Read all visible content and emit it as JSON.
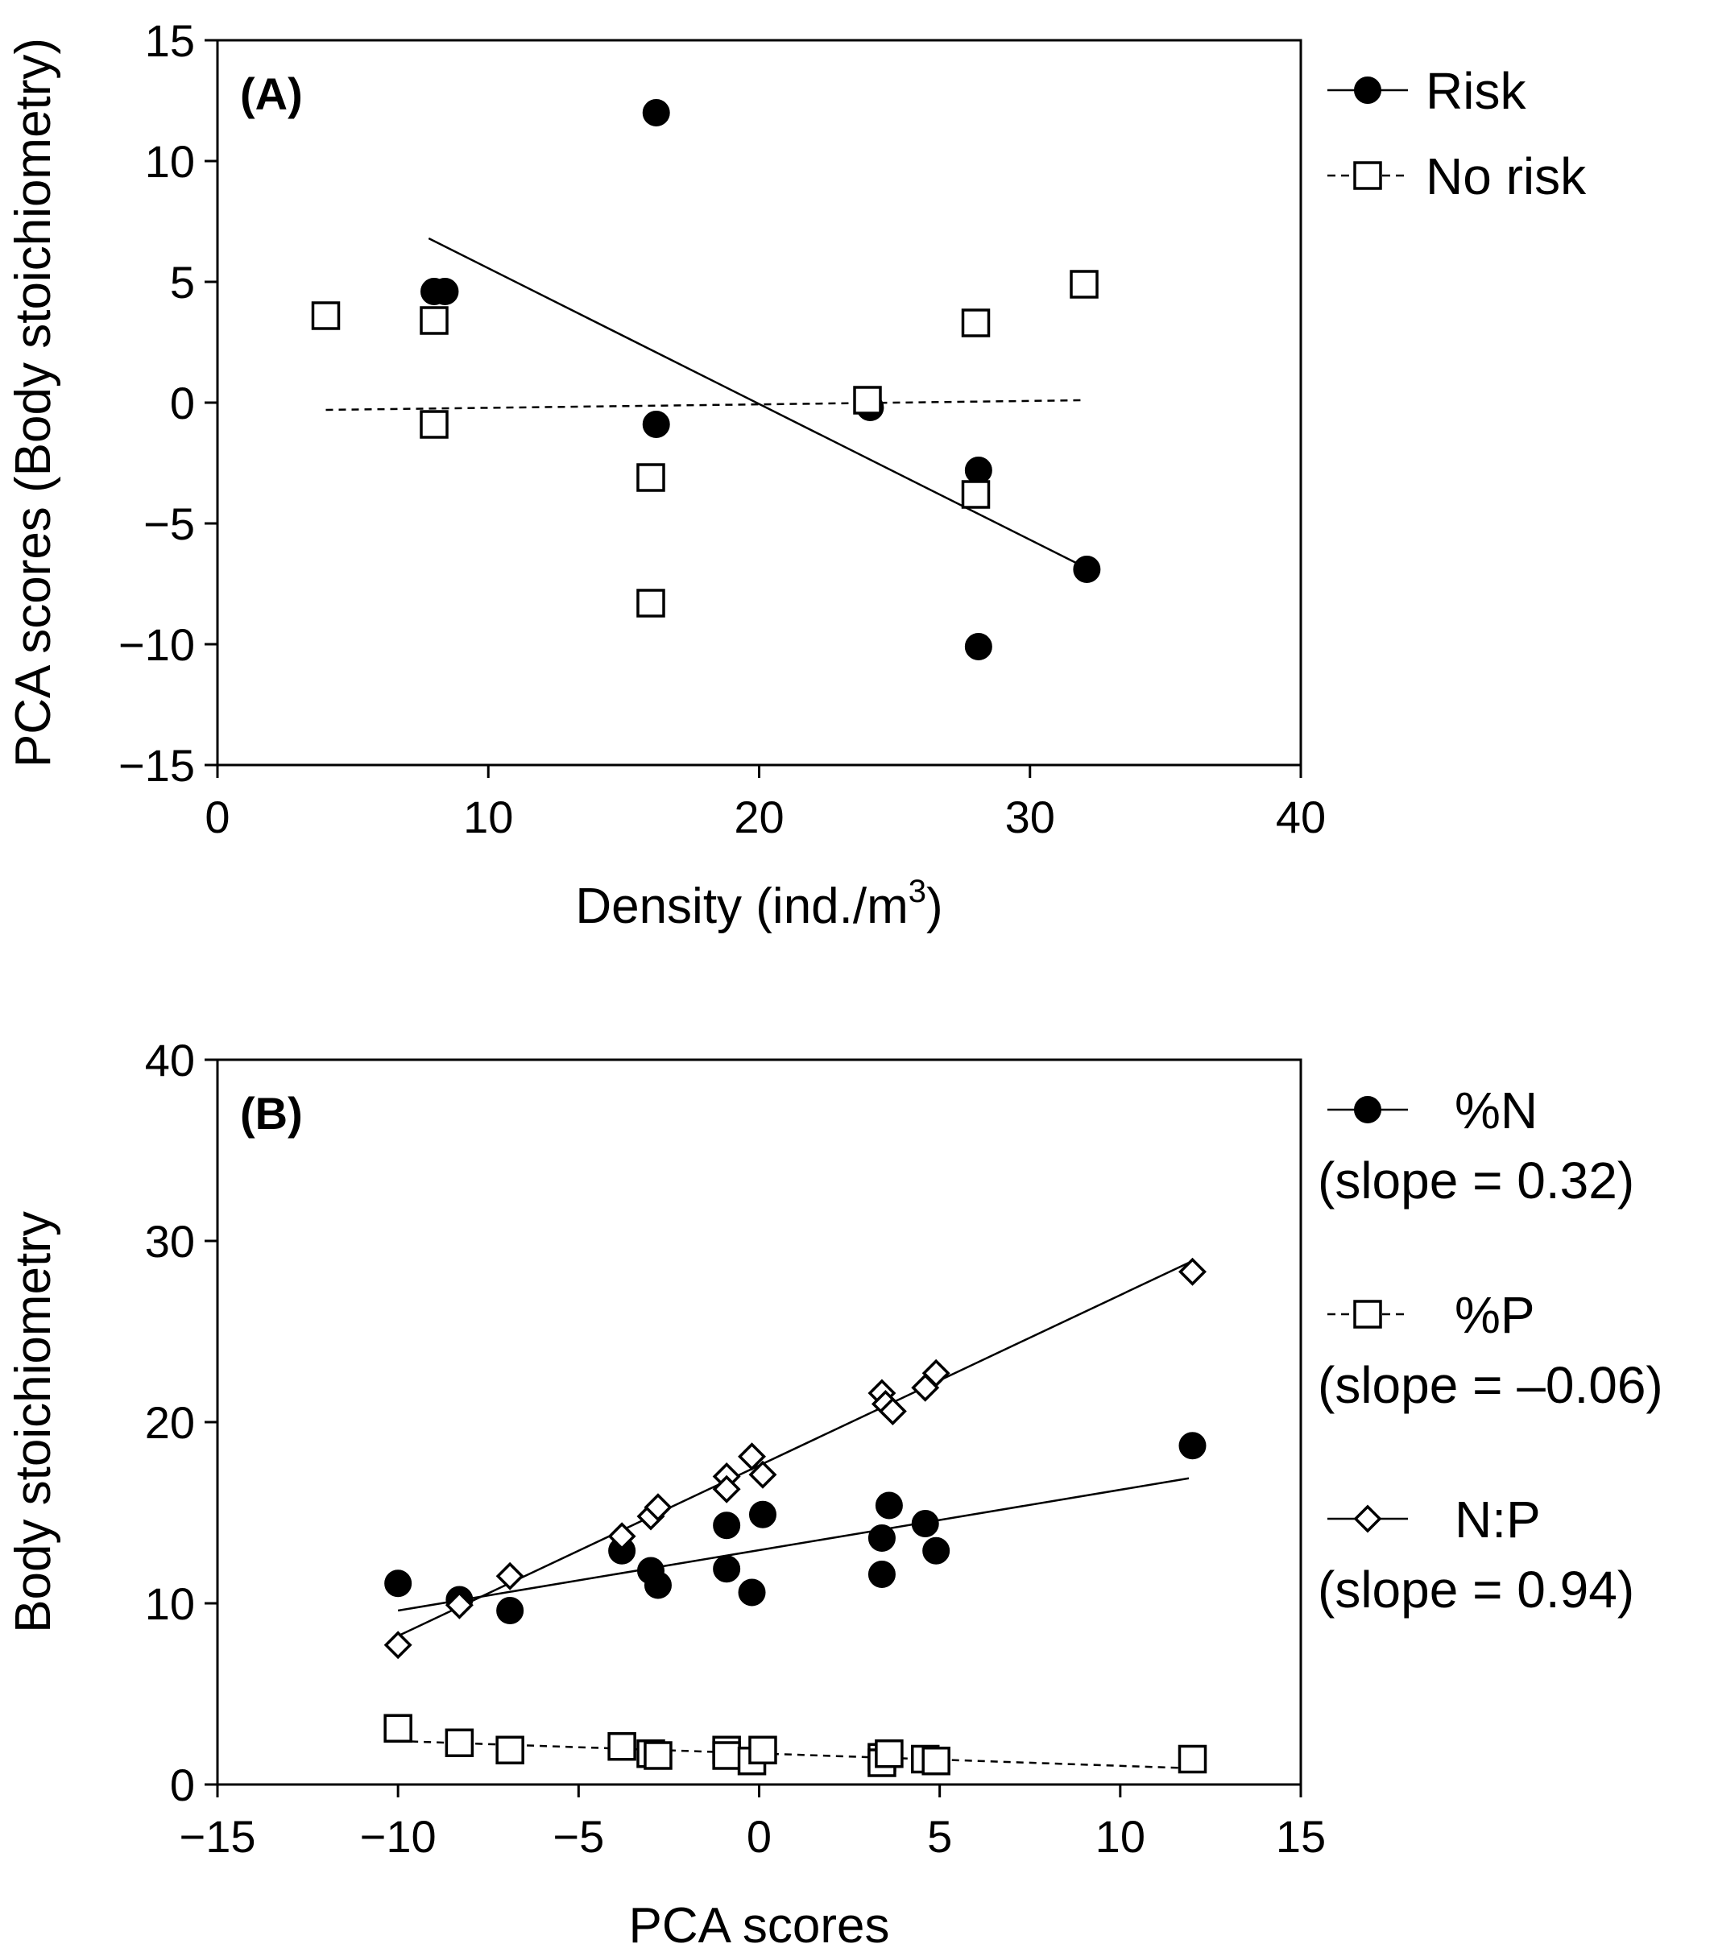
{
  "chart_data": [
    {
      "type": "scatter",
      "panel_label": "(A)",
      "xlabel": "Density (ind./m",
      "xlabel_sup": "3",
      "xlabel_end": ")",
      "ylabel": "PCA scores (Body stoichiometry)",
      "xlim": [
        0,
        40
      ],
      "ylim": [
        -15,
        15
      ],
      "xticks": [
        0,
        10,
        20,
        30,
        40
      ],
      "xtick_labels": [
        "0",
        "10",
        "20",
        "30",
        "40"
      ],
      "yticks": [
        -15,
        -10,
        -5,
        0,
        5,
        10,
        15
      ],
      "ytick_labels": [
        "−15",
        "−10",
        "−5",
        "0",
        "5",
        "10",
        "15"
      ],
      "legend_position": "right, outside",
      "series": [
        {
          "name": "Risk",
          "marker": "filled-circle",
          "line": "solid",
          "points": [
            [
              8,
              4.6
            ],
            [
              8.4,
              4.6
            ],
            [
              16.2,
              12.0
            ],
            [
              16.2,
              -0.9
            ],
            [
              24.1,
              -0.2
            ],
            [
              28.1,
              -2.8
            ],
            [
              28.1,
              -10.1
            ],
            [
              32.1,
              -6.9
            ]
          ],
          "fit": [
            [
              7.8,
              6.8
            ],
            [
              32.0,
              -6.8
            ]
          ]
        },
        {
          "name": "No risk",
          "marker": "open-square",
          "line": "dashed",
          "points": [
            [
              4,
              3.6
            ],
            [
              8,
              3.4
            ],
            [
              8,
              -0.9
            ],
            [
              16,
              -3.1
            ],
            [
              16,
              -8.3
            ],
            [
              24,
              0.1
            ],
            [
              28,
              3.3
            ],
            [
              28,
              -3.8
            ],
            [
              32,
              4.9
            ]
          ],
          "fit": [
            [
              4.0,
              -0.3
            ],
            [
              32.0,
              0.1
            ]
          ]
        }
      ]
    },
    {
      "type": "scatter",
      "panel_label": "(B)",
      "xlabel": "PCA scores",
      "ylabel": "Body stoichiometry",
      "xlim": [
        -15,
        15
      ],
      "ylim": [
        0,
        40
      ],
      "xticks": [
        -15,
        -10,
        -5,
        0,
        5,
        10,
        15
      ],
      "xtick_labels": [
        "−15",
        "−10",
        "−5",
        "0",
        "5",
        "10",
        "15"
      ],
      "yticks": [
        0,
        10,
        20,
        30,
        40
      ],
      "ytick_labels": [
        "0",
        "10",
        "20",
        "30",
        "40"
      ],
      "legend_position": "right, outside",
      "series": [
        {
          "name": "%N",
          "slope_label": "(slope = 0.32)",
          "marker": "filled-circle",
          "line": "solid",
          "points": [
            [
              -10.0,
              11.1
            ],
            [
              -8.3,
              10.2
            ],
            [
              -6.9,
              9.6
            ],
            [
              -3.8,
              12.9
            ],
            [
              -3.0,
              11.8
            ],
            [
              -2.8,
              11.0
            ],
            [
              -0.9,
              14.3
            ],
            [
              -0.9,
              11.9
            ],
            [
              -0.2,
              10.6
            ],
            [
              0.1,
              14.9
            ],
            [
              3.4,
              13.6
            ],
            [
              3.4,
              11.6
            ],
            [
              3.6,
              15.4
            ],
            [
              4.6,
              14.4
            ],
            [
              4.9,
              12.9
            ],
            [
              12.0,
              18.7
            ]
          ],
          "fit": [
            [
              -10.0,
              9.6
            ],
            [
              11.9,
              16.9
            ]
          ]
        },
        {
          "name": "%P",
          "slope_label": "(slope = –0.06)",
          "marker": "open-square",
          "line": "dashed",
          "points": [
            [
              -10.0,
              3.1
            ],
            [
              -8.3,
              2.3
            ],
            [
              -6.9,
              1.9
            ],
            [
              -3.8,
              2.1
            ],
            [
              -3.0,
              1.7
            ],
            [
              -2.8,
              1.6
            ],
            [
              -0.9,
              1.9
            ],
            [
              -0.9,
              1.6
            ],
            [
              -0.2,
              1.3
            ],
            [
              0.1,
              1.9
            ],
            [
              3.4,
              1.5
            ],
            [
              3.4,
              1.2
            ],
            [
              3.6,
              1.7
            ],
            [
              4.6,
              1.4
            ],
            [
              4.9,
              1.3
            ],
            [
              12.0,
              1.4
            ]
          ],
          "fit": [
            [
              -10.0,
              2.4
            ],
            [
              11.9,
              0.9
            ]
          ]
        },
        {
          "name": "N:P",
          "slope_label": "(slope = 0.94)",
          "marker": "open-diamond",
          "line": "solid",
          "points": [
            [
              -10.0,
              7.7
            ],
            [
              -8.3,
              9.9
            ],
            [
              -6.9,
              11.5
            ],
            [
              -3.8,
              13.7
            ],
            [
              -3.0,
              14.8
            ],
            [
              -2.8,
              15.3
            ],
            [
              -0.9,
              17.0
            ],
            [
              -0.9,
              16.3
            ],
            [
              -0.2,
              18.1
            ],
            [
              0.1,
              17.1
            ],
            [
              3.4,
              21.6
            ],
            [
              3.5,
              21.0
            ],
            [
              3.7,
              20.6
            ],
            [
              4.6,
              21.9
            ],
            [
              4.9,
              22.7
            ],
            [
              12.0,
              28.3
            ]
          ],
          "fit": [
            [
              -10.0,
              8.2
            ],
            [
              11.9,
              28.8
            ]
          ]
        }
      ]
    }
  ]
}
